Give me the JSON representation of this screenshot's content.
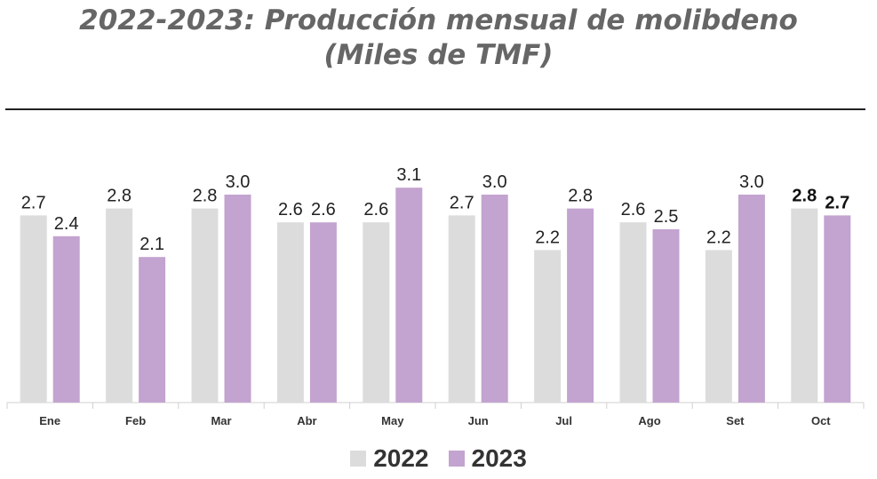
{
  "chart_data": {
    "type": "bar",
    "title": "2022-2023: Producción mensual de molibdeno",
    "subtitle": "(Miles de TMF)",
    "categories": [
      "Ene",
      "Feb",
      "Mar",
      "Abr",
      "May",
      "Jun",
      "Jul",
      "Ago",
      "Set",
      "Oct"
    ],
    "series": [
      {
        "name": "2022",
        "color": "#dcdcdc",
        "values": [
          2.7,
          2.8,
          2.8,
          2.6,
          2.6,
          2.7,
          2.2,
          2.6,
          2.2,
          2.8
        ],
        "labels": [
          "2.7",
          "2.8",
          "2.8",
          "2.6",
          "2.6",
          "2.7",
          "2.2",
          "2.6",
          "2.2",
          "2.8"
        ]
      },
      {
        "name": "2023",
        "color": "#c3a3cf",
        "values": [
          2.4,
          2.1,
          3.0,
          2.6,
          3.1,
          3.0,
          2.8,
          2.5,
          3.0,
          2.7
        ],
        "labels": [
          "2.4",
          "2.1",
          "3.0",
          "2.6",
          "3.1",
          "3.0",
          "2.8",
          "2.5",
          "3.0",
          "2.7"
        ]
      }
    ],
    "emphasized_category": "Oct",
    "ylim": [
      0,
      3.2
    ],
    "grid": false,
    "legend_position": "bottom"
  }
}
